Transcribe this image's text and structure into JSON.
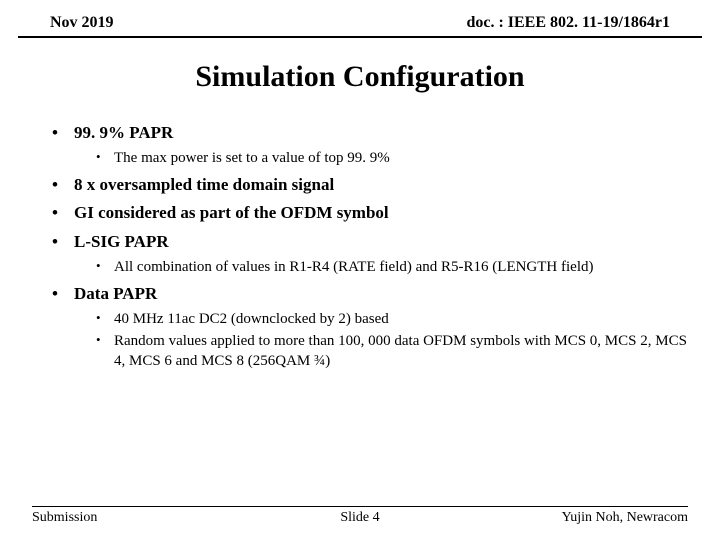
{
  "header": {
    "date": "Nov 2019",
    "doc": "doc. : IEEE 802. 11-19/1864r1"
  },
  "title": "Simulation Configuration",
  "bullets": [
    {
      "text": "99. 9% PAPR",
      "sub": [
        "The max power is set to a value of top 99. 9%"
      ]
    },
    {
      "text": "8 x oversampled time domain signal",
      "sub": []
    },
    {
      "text": "GI considered as part of the OFDM symbol",
      "sub": []
    },
    {
      "text": "L-SIG PAPR",
      "sub": [
        "All combination of values in R1-R4 (RATE field) and R5-R16 (LENGTH field)"
      ]
    },
    {
      "text": "Data PAPR",
      "sub": [
        "40 MHz 11ac DC2 (downclocked by 2) based",
        "Random values applied to more than 100, 000 data OFDM symbols with MCS 0, MCS 2, MCS 4, MCS 6 and MCS 8 (256QAM ¾)"
      ]
    }
  ],
  "footer": {
    "left": "Submission",
    "center": "Slide 4",
    "right": "Yujin Noh, Newracom"
  }
}
